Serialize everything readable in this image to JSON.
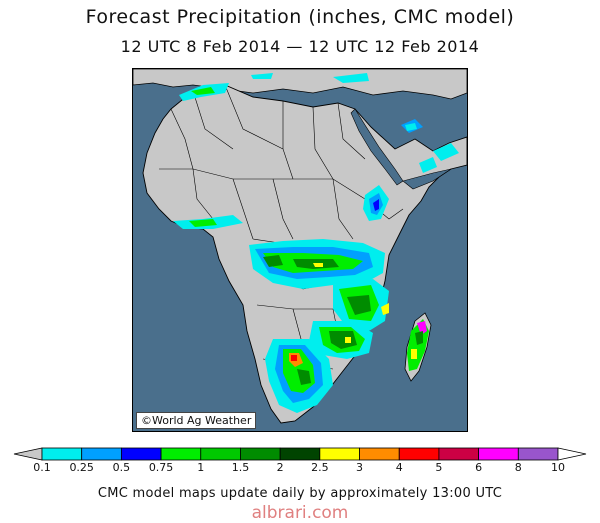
{
  "header": {
    "title": "Forecast Precipitation (inches, CMC model)",
    "subtitle": "12 UTC 8 Feb 2014 — 12 UTC 12 Feb 2014"
  },
  "map": {
    "region": "Africa",
    "credit": "©World Ag Weather",
    "ocean_color": "#4a6f8c",
    "land_color": "#c8c8c8",
    "border_color": "#000000"
  },
  "legend": {
    "unit": "inches",
    "ticks": [
      "0.1",
      "0.25",
      "0.5",
      "0.75",
      "1",
      "1.5",
      "2",
      "2.5",
      "3",
      "4",
      "5",
      "6",
      "8",
      "10"
    ],
    "colors": [
      "#00eeee",
      "#00a0ff",
      "#0000ff",
      "#00ee00",
      "#00c800",
      "#008c00",
      "#004400",
      "#ffff00",
      "#ff8c00",
      "#ff0000",
      "#cc0044",
      "#ff00ff",
      "#9955cc"
    ],
    "end_color": "#c8c8c8"
  },
  "footer": {
    "note": "CMC model maps update daily by approximately 13:00 UTC",
    "watermark": "albrari.com"
  }
}
